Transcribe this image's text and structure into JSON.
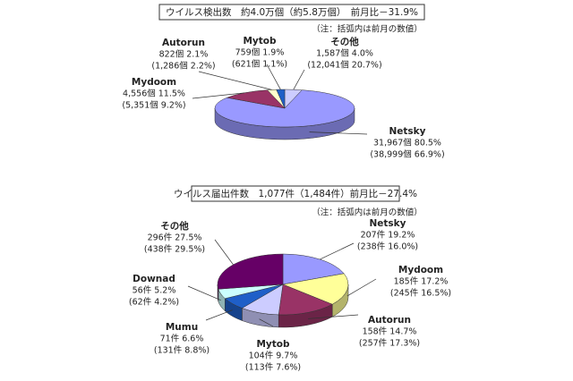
{
  "chart_data": [
    {
      "type": "pie",
      "title": "ウイルス検出数　約4.0万個（約5.8万個）　前月比－31.9%",
      "note": "（注：括弧内は前月の数値）",
      "labels": [
        "その他",
        "Netsky",
        "Mydoom",
        "Autorun",
        "Mytob"
      ],
      "values": [
        4.0,
        80.5,
        11.5,
        2.1,
        1.9
      ],
      "value_labels": [
        "1,587個 4.0%",
        "31,967個 80.5%",
        "4,556個 11.5%",
        "822個 2.1%",
        "759個 1.9%"
      ],
      "prev_labels": [
        "(12,041個 20.7%)",
        "(38,999個 66.9%)",
        "(5,351個 9.2%)",
        "(1,286個 2.2%)",
        "(621個 1.1%)"
      ],
      "colors": [
        "#ccccff",
        "#9999ff",
        "#993366",
        "#ffffcc",
        "#1f5fc8"
      ]
    },
    {
      "type": "pie",
      "title": "ウイルス届出件数　1,077件（1,484件）前月比－27.4%",
      "note": "（注：括弧内は前月の数値）",
      "labels": [
        "Netsky",
        "Mydoom",
        "Autorun",
        "Mytob",
        "Mumu",
        "Downad",
        "その他"
      ],
      "values": [
        19.2,
        17.2,
        14.7,
        9.7,
        6.6,
        5.2,
        27.5
      ],
      "value_labels": [
        "207件 19.2%",
        "185件 17.2%",
        "158件 14.7%",
        "104件 9.7%",
        "71件 6.6%",
        "56件 5.2%",
        "296件 27.5%"
      ],
      "prev_labels": [
        "(238件 16.0%)",
        "(245件 16.5%)",
        "(257件 17.3%)",
        "(113件 7.6%)",
        "(131件 8.8%)",
        "(62件 4.2%)",
        "(438件 29.5%)"
      ],
      "colors": [
        "#9999ff",
        "#ffff99",
        "#993366",
        "#ccccff",
        "#1f5fc8",
        "#ccffff",
        "#660066"
      ]
    }
  ]
}
